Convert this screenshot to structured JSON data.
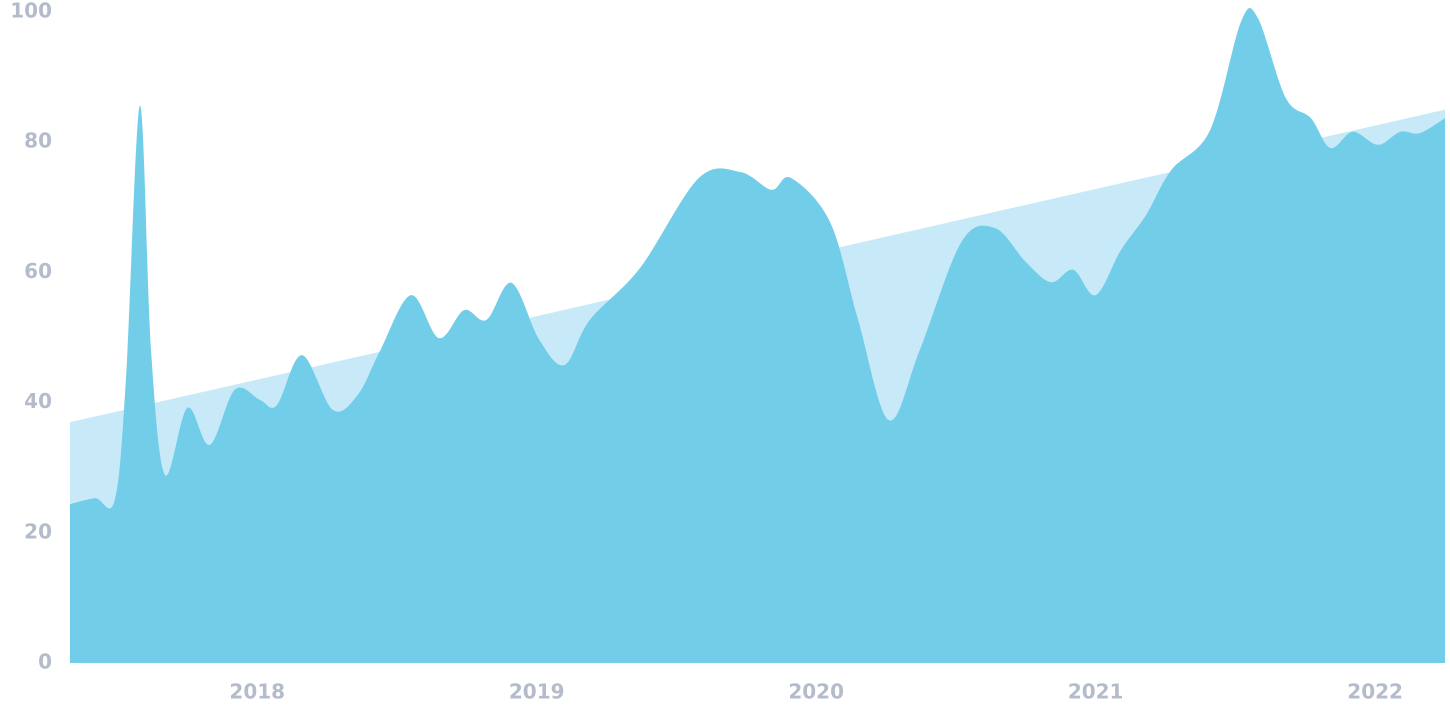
{
  "chart_data": {
    "type": "area",
    "xlim": [
      2017.33,
      2022.25
    ],
    "xticks": [
      2018,
      2019,
      2020,
      2021,
      2022
    ],
    "ylim": [
      0,
      100
    ],
    "yticks": [
      0,
      20,
      40,
      60,
      80,
      100
    ],
    "grid": false,
    "series": [
      {
        "color": "#c8eaf8",
        "x": [
          2017.33,
          2022.25
        ],
        "values": [
          37,
          85
        ]
      },
      {
        "color": "#72cde9",
        "x": [
          2017.33,
          2017.42,
          2017.49,
          2017.53,
          2017.58,
          2017.62,
          2017.67,
          2017.75,
          2017.83,
          2017.92,
          2018.01,
          2018.07,
          2018.16,
          2018.27,
          2018.36,
          2018.44,
          2018.55,
          2018.65,
          2018.74,
          2018.82,
          2018.91,
          2019.01,
          2019.1,
          2019.19,
          2019.37,
          2019.58,
          2019.73,
          2019.84,
          2019.91,
          2020.05,
          2020.15,
          2020.26,
          2020.37,
          2020.52,
          2020.64,
          2020.75,
          2020.84,
          2020.92,
          2021.0,
          2021.09,
          2021.18,
          2021.27,
          2021.41,
          2021.52,
          2021.58,
          2021.68,
          2021.77,
          2021.84,
          2021.92,
          2022.01,
          2022.09,
          2022.16,
          2022.25
        ],
        "values": [
          24.4,
          25.3,
          25.0,
          43.5,
          85.6,
          48,
          28.9,
          39.2,
          33.5,
          42,
          40.4,
          39.6,
          47.3,
          38.9,
          41.2,
          48,
          56.5,
          49.9,
          54.2,
          52.7,
          58.4,
          49.6,
          45.8,
          52.7,
          60.7,
          74.5,
          75.4,
          72.7,
          74.5,
          67.7,
          52.7,
          37.3,
          48,
          64.7,
          66.8,
          61.6,
          58.5,
          60.4,
          56.5,
          63.4,
          68.8,
          75.7,
          81.9,
          98.5,
          99.1,
          86.8,
          83.7,
          79.1,
          81.6,
          79.6,
          81.6,
          81.4,
          83.7
        ]
      }
    ]
  }
}
